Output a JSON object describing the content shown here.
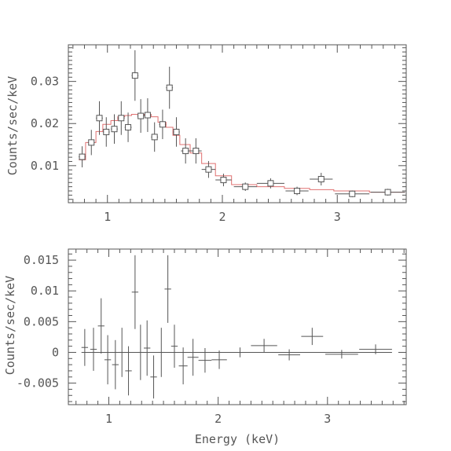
{
  "chart_data": [
    {
      "type": "scatter",
      "title": "",
      "xlabel": "",
      "ylabel": "Counts/sec/keV",
      "xlim": [
        0.66,
        3.6
      ],
      "ylim": [
        0.0012,
        0.0387
      ],
      "x_ticks": [
        1,
        2,
        3
      ],
      "x_ticklabels": [
        "1",
        "2",
        "3"
      ],
      "y_ticks": [
        0.01,
        0.02,
        0.03
      ],
      "y_ticklabels": [
        "0.01",
        "0.02",
        "0.03"
      ],
      "series": [
        {
          "kind": "data",
          "points": [
            {
              "x": 0.78,
              "xerr": 0.03,
              "y": 0.0121,
              "yerr": 0.0025
            },
            {
              "x": 0.86,
              "xerr": 0.03,
              "y": 0.0155,
              "yerr": 0.003
            },
            {
              "x": 0.93,
              "xerr": 0.03,
              "y": 0.0213,
              "yerr": 0.004
            },
            {
              "x": 0.99,
              "xerr": 0.03,
              "y": 0.018,
              "yerr": 0.0035
            },
            {
              "x": 1.06,
              "xerr": 0.03,
              "y": 0.0187,
              "yerr": 0.0035
            },
            {
              "x": 1.12,
              "xerr": 0.03,
              "y": 0.0213,
              "yerr": 0.004
            },
            {
              "x": 1.18,
              "xerr": 0.03,
              "y": 0.0191,
              "yerr": 0.0035
            },
            {
              "x": 1.24,
              "xerr": 0.03,
              "y": 0.0314,
              "yerr": 0.006
            },
            {
              "x": 1.29,
              "xerr": 0.03,
              "y": 0.0218,
              "yerr": 0.004
            },
            {
              "x": 1.35,
              "xerr": 0.03,
              "y": 0.022,
              "yerr": 0.004
            },
            {
              "x": 1.41,
              "xerr": 0.03,
              "y": 0.0168,
              "yerr": 0.0035
            },
            {
              "x": 1.48,
              "xerr": 0.03,
              "y": 0.0198,
              "yerr": 0.0035
            },
            {
              "x": 1.54,
              "xerr": 0.03,
              "y": 0.0285,
              "yerr": 0.005
            },
            {
              "x": 1.6,
              "xerr": 0.03,
              "y": 0.018,
              "yerr": 0.0035
            },
            {
              "x": 1.68,
              "xerr": 0.04,
              "y": 0.0135,
              "yerr": 0.003
            },
            {
              "x": 1.77,
              "xerr": 0.05,
              "y": 0.0135,
              "yerr": 0.003
            },
            {
              "x": 1.88,
              "xerr": 0.06,
              "y": 0.0091,
              "yerr": 0.002
            },
            {
              "x": 2.01,
              "xerr": 0.07,
              "y": 0.0066,
              "yerr": 0.0015
            },
            {
              "x": 2.2,
              "xerr": 0.1,
              "y": 0.005,
              "yerr": 0.001
            },
            {
              "x": 2.42,
              "xerr": 0.12,
              "y": 0.0058,
              "yerr": 0.0012
            },
            {
              "x": 2.65,
              "xerr": 0.1,
              "y": 0.004,
              "yerr": 0.001
            },
            {
              "x": 2.86,
              "xerr": 0.1,
              "y": 0.0068,
              "yerr": 0.0015
            },
            {
              "x": 3.13,
              "xerr": 0.15,
              "y": 0.0033,
              "yerr": 0.0008
            },
            {
              "x": 3.44,
              "xerr": 0.15,
              "y": 0.0037,
              "yerr": 0.0008
            }
          ]
        },
        {
          "kind": "model",
          "step_edges": [
            0.75,
            0.81,
            0.9,
            0.96,
            1.03,
            1.09,
            1.15,
            1.21,
            1.27,
            1.32,
            1.38,
            1.44,
            1.51,
            1.57,
            1.63,
            1.72,
            1.82,
            1.94,
            2.08,
            2.3,
            2.54,
            2.76,
            2.97,
            3.28,
            3.59
          ],
          "step_values": [
            0.0114,
            0.0155,
            0.0181,
            0.0198,
            0.0207,
            0.0216,
            0.0219,
            0.0222,
            0.022,
            0.0222,
            0.0216,
            0.0203,
            0.0191,
            0.0172,
            0.015,
            0.013,
            0.0105,
            0.0076,
            0.0055,
            0.005,
            0.0046,
            0.0043,
            0.004,
            0.0037
          ]
        }
      ]
    },
    {
      "type": "scatter",
      "title": "",
      "xlabel": "Energy (keV)",
      "ylabel": "Counts/sec/keV",
      "xlim": [
        0.63,
        3.72
      ],
      "ylim": [
        -0.0085,
        0.0168
      ],
      "x_ticks": [
        1,
        2,
        3
      ],
      "x_ticklabels": [
        "1",
        "2",
        "3"
      ],
      "y_ticks": [
        -0.005,
        0,
        0.005,
        0.01,
        0.015
      ],
      "y_ticklabels": [
        "-0.005",
        "0",
        "0.005",
        "0.01",
        "0.015"
      ],
      "zero_line": true,
      "series": [
        {
          "kind": "residuals",
          "points": [
            {
              "x": 0.78,
              "xerr": 0.03,
              "y": 0.0008,
              "yerr": 0.003
            },
            {
              "x": 0.86,
              "xerr": 0.03,
              "y": 0.0005,
              "yerr": 0.0035
            },
            {
              "x": 0.93,
              "xerr": 0.03,
              "y": 0.0043,
              "yerr": 0.0045
            },
            {
              "x": 0.99,
              "xerr": 0.03,
              "y": -0.0012,
              "yerr": 0.004
            },
            {
              "x": 1.06,
              "xerr": 0.03,
              "y": -0.002,
              "yerr": 0.004
            },
            {
              "x": 1.12,
              "xerr": 0.03,
              "y": 0.0,
              "yerr": 0.004
            },
            {
              "x": 1.18,
              "xerr": 0.03,
              "y": -0.003,
              "yerr": 0.004
            },
            {
              "x": 1.24,
              "xerr": 0.03,
              "y": 0.0098,
              "yerr": 0.006
            },
            {
              "x": 1.29,
              "xerr": 0.03,
              "y": 0.0,
              "yerr": 0.0045
            },
            {
              "x": 1.35,
              "xerr": 0.03,
              "y": 0.0007,
              "yerr": 0.0045
            },
            {
              "x": 1.41,
              "xerr": 0.03,
              "y": -0.004,
              "yerr": 0.0035
            },
            {
              "x": 1.48,
              "xerr": 0.03,
              "y": 0.0,
              "yerr": 0.004
            },
            {
              "x": 1.54,
              "xerr": 0.03,
              "y": 0.0103,
              "yerr": 0.0055
            },
            {
              "x": 1.6,
              "xerr": 0.03,
              "y": 0.001,
              "yerr": 0.0035
            },
            {
              "x": 1.68,
              "xerr": 0.04,
              "y": -0.0022,
              "yerr": 0.003
            },
            {
              "x": 1.77,
              "xerr": 0.05,
              "y": -0.0008,
              "yerr": 0.003
            },
            {
              "x": 1.88,
              "xerr": 0.06,
              "y": -0.0013,
              "yerr": 0.002
            },
            {
              "x": 2.01,
              "xerr": 0.07,
              "y": -0.0012,
              "yerr": 0.0015
            },
            {
              "x": 2.2,
              "xerr": 0.1,
              "y": 0.0,
              "yerr": 0.0008
            },
            {
              "x": 2.42,
              "xerr": 0.12,
              "y": 0.0011,
              "yerr": 0.0011
            },
            {
              "x": 2.65,
              "xerr": 0.1,
              "y": -0.0004,
              "yerr": 0.0009
            },
            {
              "x": 2.86,
              "xerr": 0.1,
              "y": 0.0026,
              "yerr": 0.0014
            },
            {
              "x": 3.13,
              "xerr": 0.15,
              "y": -0.0003,
              "yerr": 0.0007
            },
            {
              "x": 3.44,
              "xerr": 0.15,
              "y": 0.0005,
              "yerr": 0.0008
            }
          ]
        }
      ]
    }
  ]
}
